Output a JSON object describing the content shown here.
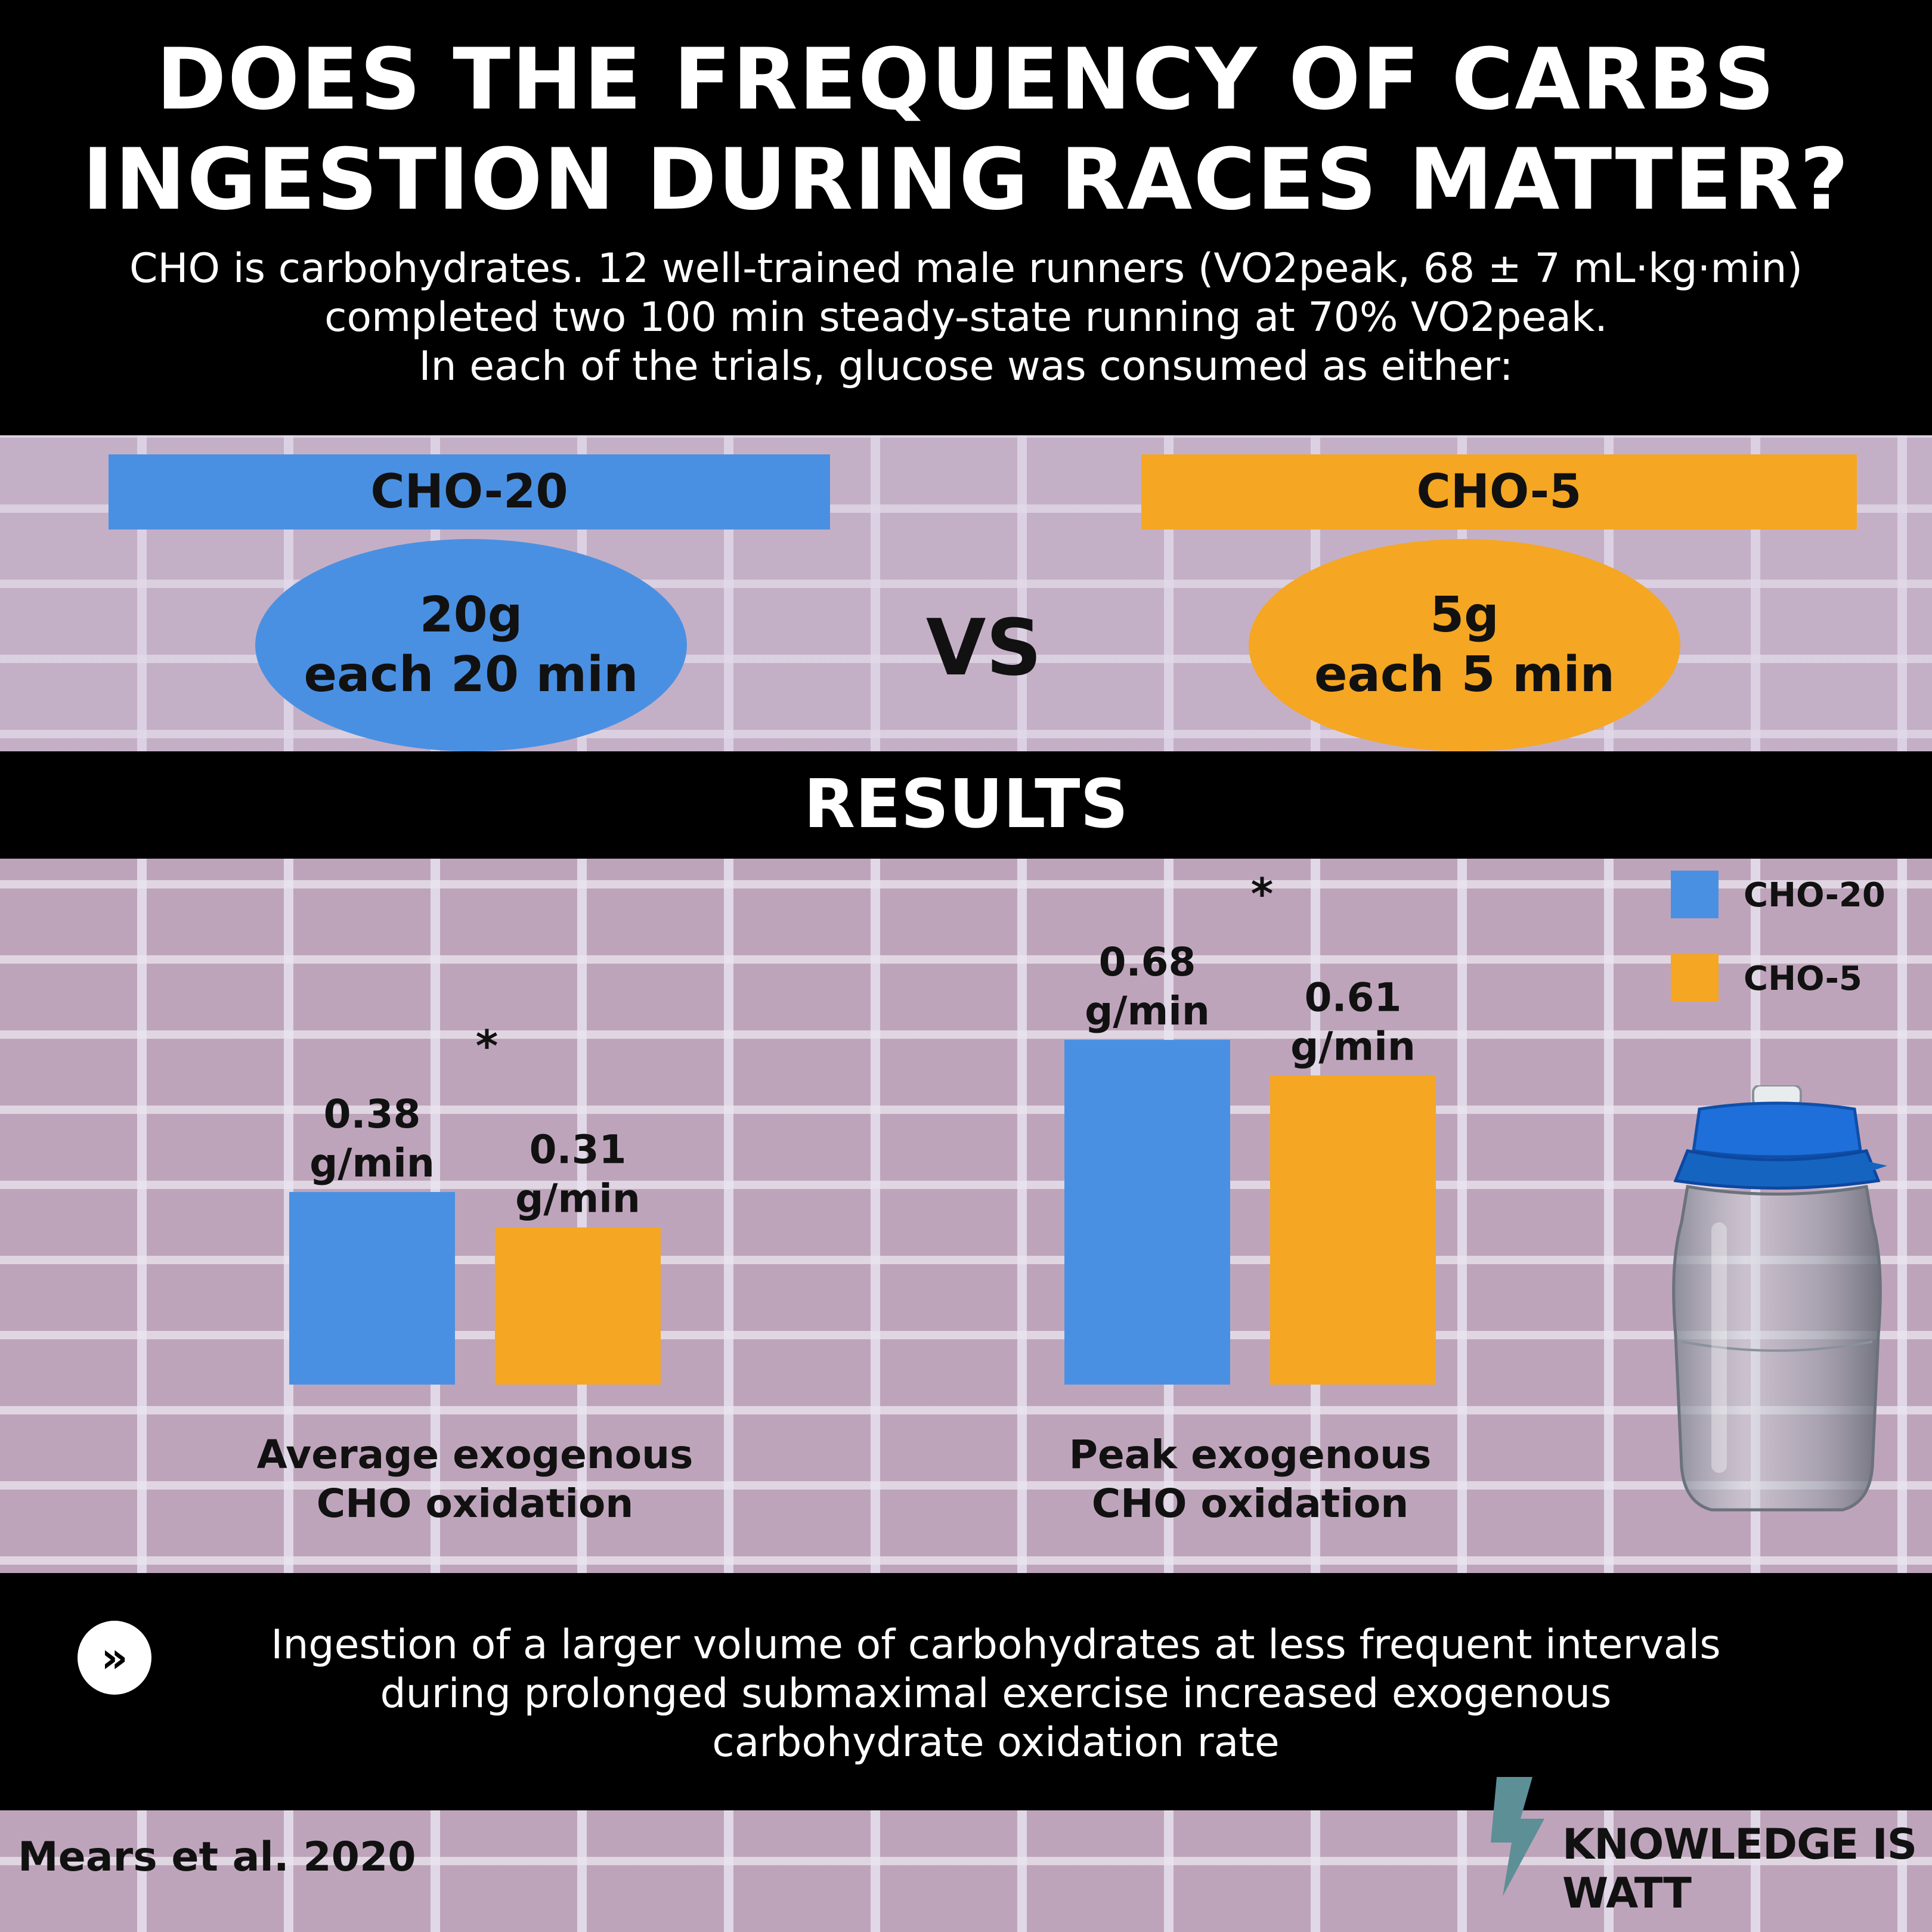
{
  "title": {
    "line1": "DOES THE FREQUENCY OF CARBS",
    "line2": "INGESTION DURING RACES MATTER?"
  },
  "subtitle": {
    "line1": "CHO is carbohydrates. 12 well-trained male runners (VO2peak, 68 ± 7 mL·kg·min)",
    "line2": "completed two 100 min steady-state running at 70% VO2peak.",
    "line3": "In each of the trials, glucose was consumed as either:"
  },
  "groups": {
    "cho20": {
      "label": "CHO-20",
      "dose": "20g",
      "interval": "each 20 min",
      "color": "#4a90e2"
    },
    "vs": "VS",
    "cho5": {
      "label": "CHO-5",
      "dose": "5g",
      "interval": "each 5 min",
      "color": "#f5a623"
    }
  },
  "results_heading": "RESULTS",
  "chart_data": {
    "type": "bar",
    "categories": [
      "Average exogenous CHO oxidation",
      "Peak exogenous CHO oxidation"
    ],
    "category_lines": [
      [
        "Average exogenous",
        "CHO oxidation"
      ],
      [
        "Peak exogenous",
        "CHO  oxidation"
      ]
    ],
    "series": [
      {
        "name": "CHO-20",
        "values": [
          0.38,
          0.68
        ],
        "labels": [
          [
            "0.38",
            "g/min"
          ],
          [
            "0.68",
            "g/min"
          ]
        ],
        "color": "#4a90e2"
      },
      {
        "name": "CHO-5",
        "values": [
          0.31,
          0.61
        ],
        "labels": [
          [
            "0.31",
            "g/min"
          ],
          [
            "0.61",
            "g/min"
          ]
        ],
        "color": "#f5a623"
      }
    ],
    "significance_marker": "*",
    "legend_position": "top-right",
    "grid": false,
    "ylim": [
      0,
      0.8
    ]
  },
  "conclusion": {
    "icon": "double-chevron-icon",
    "line1": "Ingestion of a larger volume of carbohydrates at less frequent intervals",
    "line2": "during prolonged submaximal exercise  increased exogenous",
    "line3": "carbohydrate oxidation rate"
  },
  "citation": "Mears et al. 2020",
  "brand": "KNOWLEDGE IS WATT"
}
